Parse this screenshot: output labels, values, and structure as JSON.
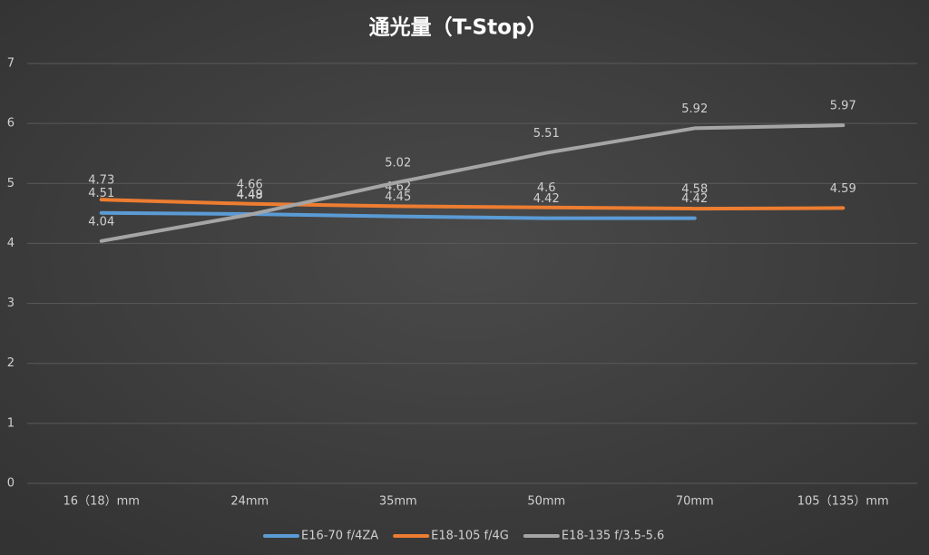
{
  "chart_data": {
    "type": "line",
    "title": "通光量（T-Stop）",
    "categories": [
      "16（18）mm",
      "24mm",
      "35mm",
      "50mm",
      "70mm",
      "105（135）mm"
    ],
    "series": [
      {
        "name": "E16-70 f/4ZA",
        "color": "#5b9bd5",
        "values": [
          4.51,
          4.49,
          4.45,
          4.42,
          4.42,
          null
        ]
      },
      {
        "name": "E18-105 f/4G",
        "color": "#ed7d31",
        "values": [
          4.73,
          4.66,
          4.62,
          4.6,
          4.58,
          4.59
        ]
      },
      {
        "name": "E18-135 f/3.5-5.6",
        "color": "#a5a5a5",
        "values": [
          4.04,
          4.48,
          5.02,
          5.51,
          5.92,
          5.97
        ]
      }
    ],
    "ylim": [
      0,
      7
    ],
    "yticks": [
      0,
      1,
      2,
      3,
      4,
      5,
      6,
      7
    ],
    "grid": true,
    "legend": "bottom"
  }
}
